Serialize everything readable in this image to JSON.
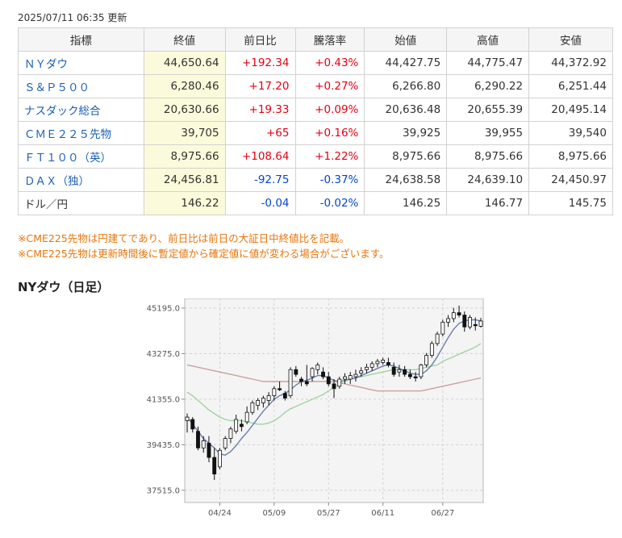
{
  "updated": "2025/07/11 06:35 更新",
  "table": {
    "headers": [
      "指標",
      "終値",
      "前日比",
      "騰落率",
      "始値",
      "高値",
      "安値"
    ],
    "rows": [
      {
        "name": "ＮＹダウ",
        "close": "44,650.64",
        "change": "+192.34",
        "rate": "+0.43%",
        "open": "44,427.75",
        "high": "44,775.47",
        "low": "44,372.92",
        "dir": "up",
        "link": true
      },
      {
        "name": "Ｓ＆Ｐ５００",
        "close": "6,280.46",
        "change": "+17.20",
        "rate": "+0.27%",
        "open": "6,266.80",
        "high": "6,290.22",
        "low": "6,251.44",
        "dir": "up",
        "link": true
      },
      {
        "name": "ナスダック総合",
        "close": "20,630.66",
        "change": "+19.33",
        "rate": "+0.09%",
        "open": "20,636.48",
        "high": "20,655.39",
        "low": "20,495.14",
        "dir": "up",
        "link": true
      },
      {
        "name": "ＣＭＥ２２５先物",
        "close": "39,705",
        "change": "+65",
        "rate": "+0.16%",
        "open": "39,925",
        "high": "39,955",
        "low": "39,540",
        "dir": "up",
        "link": true
      },
      {
        "name": "ＦＴ１００（英）",
        "close": "8,975.66",
        "change": "+108.64",
        "rate": "+1.22%",
        "open": "8,975.66",
        "high": "8,975.66",
        "low": "8,975.66",
        "dir": "up",
        "link": true
      },
      {
        "name": "ＤＡＸ（独）",
        "close": "24,456.81",
        "change": "-92.75",
        "rate": "-0.37%",
        "open": "24,638.58",
        "high": "24,639.10",
        "low": "24,450.97",
        "dir": "down",
        "link": true
      },
      {
        "name": "ドル／円",
        "close": "146.22",
        "change": "-0.04",
        "rate": "-0.02%",
        "open": "146.25",
        "high": "146.77",
        "low": "145.75",
        "dir": "down",
        "link": false
      }
    ]
  },
  "notes": [
    "※CME225先物は円建てであり、前日比は前日の大証日中終値比を記載。",
    "※CME225先物は更新時間後に暫定値から確定値に値が変わる場合がございます。"
  ],
  "chart_title": "NYダウ（日足）",
  "chart_data": {
    "type": "candlestick",
    "title": "NYダウ（日足）",
    "ylim": [
      37000,
      45600
    ],
    "yticks": [
      45195.0,
      43275.0,
      41355.0,
      39435.0,
      37515.0
    ],
    "ytick_labels": [
      "45195.0",
      "43275.0",
      "41355.0",
      "39435.0",
      "37515.0"
    ],
    "xtick_labels": [
      {
        "label": "04/24",
        "index": 6
      },
      {
        "label": "05/09",
        "index": 16
      },
      {
        "label": "05/27",
        "index": 26
      },
      {
        "label": "06/11",
        "index": 36
      },
      {
        "label": "06/27",
        "index": 47
      }
    ],
    "grid": true,
    "candles": [
      [
        40450,
        40750,
        39950,
        40600
      ],
      [
        40500,
        40600,
        39950,
        40100
      ],
      [
        40000,
        40200,
        39200,
        39300
      ],
      [
        39300,
        39800,
        39100,
        39600
      ],
      [
        39500,
        39800,
        38700,
        38900
      ],
      [
        38900,
        39300,
        37950,
        38200
      ],
      [
        38500,
        39300,
        38400,
        39200
      ],
      [
        39300,
        39800,
        39200,
        39700
      ],
      [
        39700,
        40200,
        39500,
        40100
      ],
      [
        40000,
        40700,
        39900,
        40500
      ],
      [
        40300,
        40500,
        40000,
        40200
      ],
      [
        40400,
        41050,
        40300,
        40800
      ],
      [
        40800,
        41300,
        40700,
        41200
      ],
      [
        41100,
        41400,
        40900,
        41300
      ],
      [
        41200,
        41500,
        41000,
        41400
      ],
      [
        41300,
        41650,
        41100,
        41500
      ],
      [
        41500,
        41900,
        41300,
        41800
      ],
      [
        41800,
        42100,
        41700,
        41750
      ],
      [
        41600,
        41700,
        41300,
        41400
      ],
      [
        41500,
        42700,
        41400,
        42600
      ],
      [
        42600,
        42750,
        42300,
        42400
      ],
      [
        42200,
        42300,
        41900,
        42100
      ],
      [
        42100,
        42800,
        41900,
        42000
      ],
      [
        42300,
        42700,
        42100,
        42650
      ],
      [
        42600,
        42900,
        42400,
        42800
      ],
      [
        42500,
        42700,
        42200,
        42300
      ],
      [
        42300,
        42500,
        41900,
        42000
      ],
      [
        42000,
        42200,
        41400,
        41800
      ],
      [
        41900,
        42300,
        41800,
        42200
      ],
      [
        42200,
        42450,
        42000,
        42300
      ],
      [
        42200,
        42500,
        42000,
        42350
      ],
      [
        42300,
        42600,
        42100,
        42400
      ],
      [
        42450,
        42700,
        42300,
        42550
      ],
      [
        42600,
        42850,
        42450,
        42700
      ],
      [
        42700,
        42950,
        42550,
        42850
      ],
      [
        42850,
        43050,
        42700,
        42950
      ],
      [
        42900,
        43100,
        42800,
        43000
      ],
      [
        42900,
        43100,
        42700,
        42800
      ],
      [
        42700,
        42900,
        42300,
        42400
      ],
      [
        42500,
        42800,
        42300,
        42600
      ],
      [
        42600,
        42750,
        42300,
        42400
      ],
      [
        42400,
        42600,
        42200,
        42300
      ],
      [
        42300,
        42500,
        42100,
        42250
      ],
      [
        42300,
        42850,
        42200,
        42800
      ],
      [
        42800,
        43300,
        42700,
        43200
      ],
      [
        43200,
        43800,
        43100,
        43700
      ],
      [
        43700,
        44200,
        43600,
        44100
      ],
      [
        44100,
        44700,
        44000,
        44600
      ],
      [
        44600,
        44900,
        44400,
        44750
      ],
      [
        44750,
        45200,
        44600,
        45000
      ],
      [
        45000,
        45300,
        44800,
        44900
      ],
      [
        44900,
        45050,
        44200,
        44400
      ],
      [
        44400,
        44900,
        44300,
        44800
      ],
      [
        44500,
        44800,
        44250,
        44450
      ],
      [
        44430,
        44780,
        44370,
        44650
      ]
    ],
    "ma_series": [
      {
        "color": "#6a7fae",
        "values": [
          40600,
          40300,
          40000,
          39700,
          39500,
          39300,
          39050,
          39000,
          39150,
          39400,
          39700,
          39950,
          40250,
          40550,
          40850,
          41100,
          41350,
          41500,
          41600,
          41750,
          41950,
          42100,
          42150,
          42250,
          42350,
          42350,
          42250,
          42150,
          42100,
          42150,
          42200,
          42250,
          42350,
          42450,
          42550,
          42650,
          42750,
          42800,
          42750,
          42650,
          42550,
          42450,
          42400,
          42400,
          42550,
          42800,
          43150,
          43550,
          43950,
          44300,
          44550,
          44650,
          44700,
          44700,
          44650
        ]
      },
      {
        "color": "#9fd4a2",
        "values": [
          41650,
          41500,
          41300,
          41100,
          40900,
          40750,
          40600,
          40500,
          40450,
          40450,
          40450,
          40400,
          40350,
          40300,
          40300,
          40350,
          40450,
          40600,
          40800,
          40950,
          41050,
          41150,
          41250,
          41350,
          41450,
          41550,
          41700,
          41850,
          42000,
          42100,
          42200,
          42250,
          42300,
          42350,
          42400,
          42450,
          42500,
          42550,
          42600,
          42600,
          42600,
          42600,
          42600,
          42650,
          42700,
          42750,
          42800,
          42950,
          43050,
          43150,
          43250,
          43350,
          43450,
          43550,
          43700
        ]
      },
      {
        "color": "#c9a29f",
        "values": [
          42800,
          42750,
          42700,
          42650,
          42600,
          42550,
          42500,
          42450,
          42400,
          42350,
          42300,
          42250,
          42200,
          42150,
          42100,
          42100,
          42100,
          42100,
          42100,
          42100,
          42100,
          42100,
          42100,
          42100,
          42100,
          42100,
          42100,
          42100,
          42050,
          42000,
          41950,
          41900,
          41850,
          41800,
          41750,
          41700,
          41700,
          41700,
          41700,
          41700,
          41700,
          41700,
          41700,
          41700,
          41750,
          41800,
          41850,
          41900,
          41950,
          42000,
          42050,
          42100,
          42150,
          42200,
          42250
        ]
      }
    ]
  }
}
